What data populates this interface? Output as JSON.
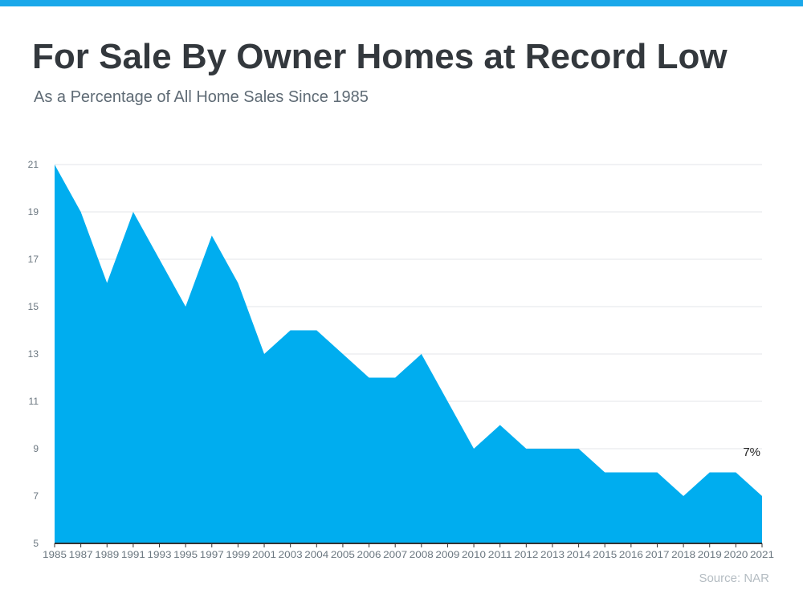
{
  "header": {
    "title": "For Sale By Owner Homes at Record Low",
    "subtitle": "As a Percentage of All Home Sales Since 1985"
  },
  "footer": {
    "source": "Source: NAR"
  },
  "colors": {
    "accent": "#00adef",
    "topbar": "#1ba8ea",
    "title": "#33383d"
  },
  "chart_data": {
    "type": "area",
    "categories": [
      "1985",
      "1987",
      "1989",
      "1991",
      "1993",
      "1995",
      "1997",
      "1999",
      "2001",
      "2003",
      "2004",
      "2005",
      "2006",
      "2007",
      "2008",
      "2009",
      "2010",
      "2011",
      "2012",
      "2013",
      "2014",
      "2015",
      "2016",
      "2017",
      "2018",
      "2019",
      "2020",
      "2021"
    ],
    "values": [
      21,
      19,
      16,
      19,
      17,
      15,
      18,
      16,
      13,
      14,
      14,
      13,
      12,
      12,
      13,
      11,
      9,
      10,
      9,
      9,
      9,
      8,
      8,
      8,
      7,
      8,
      8,
      7
    ],
    "yticks": [
      5,
      7,
      9,
      11,
      13,
      15,
      17,
      19,
      21
    ],
    "ylim": [
      5,
      21
    ],
    "grid": true,
    "annotation": {
      "category": "2021",
      "text": "7%"
    }
  }
}
